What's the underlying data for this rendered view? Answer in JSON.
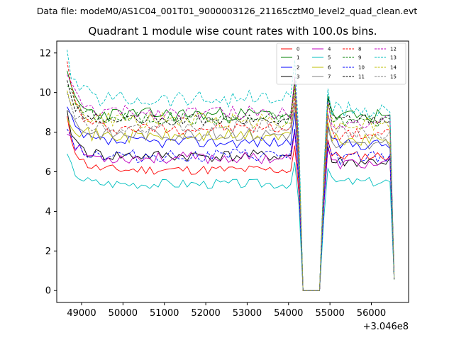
{
  "chart_data": {
    "type": "line",
    "suptitle": "Data file: modeM0/AS1C04_001T01_9000003126_21165cztM0_level2_quad_clean.evt",
    "title": "Quadrant 1 module wise count rates with 100.0s bins.",
    "xlabel": "",
    "ylabel": "",
    "x_offset_label": "+3.046e8",
    "xlim": [
      48400,
      56900
    ],
    "ylim": [
      -0.6,
      12.6
    ],
    "x_ticks": [
      49000,
      50000,
      51000,
      52000,
      53000,
      54000,
      55000,
      56000
    ],
    "x_tick_labels": [
      "49000",
      "50000",
      "51000",
      "52000",
      "53000",
      "54000",
      "55000",
      "56000"
    ],
    "y_ticks": [
      0,
      2,
      4,
      6,
      8,
      10,
      12
    ],
    "y_tick_labels": [
      "0",
      "2",
      "4",
      "6",
      "8",
      "10",
      "12"
    ],
    "x_start": 48650,
    "x_step": 100,
    "gap_range": [
      54350,
      54750
    ],
    "x_end": 56550,
    "legend": {
      "location": "top-right",
      "columns": 4
    },
    "series": [
      {
        "name": "0",
        "color": "#ff0000",
        "dash": "solid",
        "start": 8.6,
        "plateau1": 6.1,
        "plateau2": 6.8,
        "noise": 0.25,
        "seed": 11
      },
      {
        "name": "1",
        "color": "#008000",
        "dash": "solid",
        "start": 10.8,
        "plateau1": 8.9,
        "plateau2": 8.8,
        "noise": 0.35,
        "seed": 23
      },
      {
        "name": "2",
        "color": "#0000ff",
        "dash": "solid",
        "start": 9.2,
        "plateau1": 7.5,
        "plateau2": 7.4,
        "noise": 0.3,
        "seed": 37
      },
      {
        "name": "3",
        "color": "#000000",
        "dash": "solid",
        "start": 8.8,
        "plateau1": 6.8,
        "plateau2": 6.5,
        "noise": 0.3,
        "seed": 41
      },
      {
        "name": "4",
        "color": "#bf00bf",
        "dash": "solid",
        "start": 8.2,
        "plateau1": 6.7,
        "plateau2": 6.4,
        "noise": 0.3,
        "seed": 53
      },
      {
        "name": "5",
        "color": "#00bfbf",
        "dash": "solid",
        "start": 6.8,
        "plateau1": 5.4,
        "plateau2": 5.5,
        "noise": 0.25,
        "seed": 67
      },
      {
        "name": "6",
        "color": "#bfbf00",
        "dash": "solid",
        "start": 9.0,
        "plateau1": 7.8,
        "plateau2": 7.6,
        "noise": 0.35,
        "seed": 71
      },
      {
        "name": "7",
        "color": "#808080",
        "dash": "solid",
        "start": 9.4,
        "plateau1": 7.9,
        "plateau2": 7.3,
        "noise": 0.35,
        "seed": 83
      },
      {
        "name": "8",
        "color": "#ff0000",
        "dash": "dashed",
        "start": 11.4,
        "plateau1": 8.2,
        "plateau2": 7.9,
        "noise": 0.3,
        "seed": 97
      },
      {
        "name": "9",
        "color": "#008000",
        "dash": "dashed",
        "start": 10.6,
        "plateau1": 8.7,
        "plateau2": 8.6,
        "noise": 0.35,
        "seed": 101
      },
      {
        "name": "10",
        "color": "#0000ff",
        "dash": "dashed",
        "start": 8.4,
        "plateau1": 6.8,
        "plateau2": 6.7,
        "noise": 0.35,
        "seed": 113
      },
      {
        "name": "11",
        "color": "#000000",
        "dash": "dashed",
        "start": 10.4,
        "plateau1": 8.6,
        "plateau2": 8.7,
        "noise": 0.3,
        "seed": 127
      },
      {
        "name": "12",
        "color": "#bf00bf",
        "dash": "dashed",
        "start": 11.1,
        "plateau1": 9.0,
        "plateau2": 8.5,
        "noise": 0.35,
        "seed": 131
      },
      {
        "name": "13",
        "color": "#00bfbf",
        "dash": "dashed",
        "start": 11.8,
        "plateau1": 9.7,
        "plateau2": 9.1,
        "noise": 0.45,
        "seed": 139
      },
      {
        "name": "14",
        "color": "#bfbf00",
        "dash": "dashed",
        "start": 10.3,
        "plateau1": 8.6,
        "plateau2": 8.4,
        "noise": 0.4,
        "seed": 149
      },
      {
        "name": "15",
        "color": "#808080",
        "dash": "dashed",
        "start": 9.7,
        "plateau1": 8.3,
        "plateau2": 8.0,
        "noise": 0.35,
        "seed": 151
      }
    ]
  }
}
